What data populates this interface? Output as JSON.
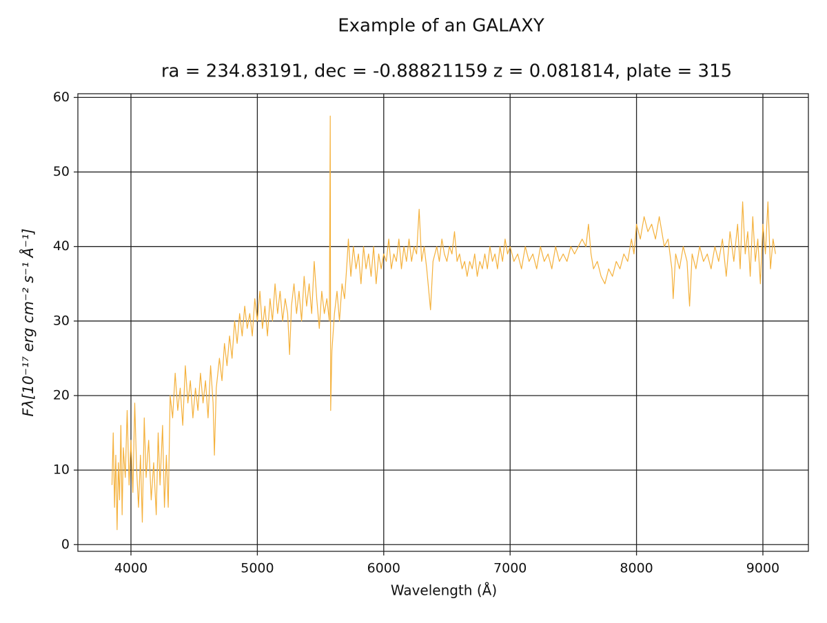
{
  "chart_data": {
    "type": "line",
    "title": "Example of an GALAXY",
    "subtitle": "ra = 234.83191, dec = -0.88821159 z = 0.081814, plate = 315",
    "xlabel": "Wavelength (Å)",
    "ylabel": "Fλ[10⁻¹⁷ erg cm⁻² s⁻¹ Å⁻¹]",
    "x": [
      3850,
      3860,
      3870,
      3880,
      3890,
      3900,
      3910,
      3920,
      3930,
      3940,
      3955,
      3970,
      3985,
      4000,
      4015,
      4030,
      4045,
      4060,
      4075,
      4090,
      4105,
      4120,
      4140,
      4160,
      4180,
      4200,
      4215,
      4230,
      4250,
      4265,
      4280,
      4295,
      4310,
      4330,
      4350,
      4370,
      4390,
      4410,
      4430,
      4450,
      4470,
      4490,
      4510,
      4530,
      4550,
      4570,
      4590,
      4610,
      4630,
      4650,
      4660,
      4675,
      4700,
      4720,
      4740,
      4760,
      4780,
      4800,
      4820,
      4840,
      4860,
      4880,
      4900,
      4920,
      4940,
      4960,
      4980,
      5000,
      5020,
      5040,
      5060,
      5080,
      5100,
      5120,
      5140,
      5160,
      5180,
      5200,
      5220,
      5240,
      5255,
      5270,
      5290,
      5310,
      5330,
      5350,
      5370,
      5390,
      5410,
      5430,
      5450,
      5470,
      5490,
      5510,
      5530,
      5550,
      5570,
      5577,
      5580,
      5590,
      5610,
      5630,
      5650,
      5670,
      5690,
      5710,
      5720,
      5740,
      5760,
      5780,
      5800,
      5820,
      5840,
      5860,
      5880,
      5900,
      5920,
      5940,
      5960,
      5980,
      6000,
      6020,
      6040,
      6060,
      6080,
      6100,
      6120,
      6140,
      6160,
      6180,
      6200,
      6220,
      6240,
      6260,
      6280,
      6300,
      6320,
      6340,
      6370,
      6390,
      6420,
      6440,
      6460,
      6480,
      6500,
      6520,
      6540,
      6560,
      6580,
      6600,
      6620,
      6640,
      6660,
      6680,
      6700,
      6720,
      6740,
      6760,
      6780,
      6800,
      6820,
      6840,
      6860,
      6880,
      6900,
      6920,
      6940,
      6960,
      6980,
      7000,
      7030,
      7060,
      7090,
      7120,
      7150,
      7180,
      7210,
      7240,
      7270,
      7300,
      7330,
      7360,
      7390,
      7420,
      7450,
      7480,
      7510,
      7540,
      7570,
      7600,
      7620,
      7640,
      7660,
      7690,
      7720,
      7750,
      7780,
      7810,
      7840,
      7870,
      7900,
      7930,
      7960,
      7980,
      8000,
      8030,
      8060,
      8090,
      8120,
      8150,
      8180,
      8200,
      8220,
      8250,
      8280,
      8290,
      8310,
      8340,
      8370,
      8400,
      8420,
      8440,
      8470,
      8500,
      8530,
      8560,
      8590,
      8620,
      8650,
      8680,
      8710,
      8740,
      8770,
      8800,
      8820,
      8840,
      8860,
      8880,
      8900,
      8920,
      8940,
      8960,
      8980,
      9000,
      9020,
      9040,
      9060,
      9080,
      9100
    ],
    "values": [
      8,
      15,
      5,
      12,
      2,
      11,
      6,
      16,
      4,
      13,
      9,
      18,
      8,
      14,
      7,
      19,
      10,
      5,
      12,
      3,
      17,
      9,
      14,
      6,
      11,
      4,
      15,
      8,
      16,
      5,
      12,
      5,
      20,
      17,
      23,
      18,
      21,
      16,
      24,
      19,
      22,
      17,
      21,
      18,
      23,
      19,
      22,
      17,
      24,
      19,
      12,
      21,
      25,
      22,
      27,
      24,
      28,
      25,
      30,
      27,
      31,
      28,
      32,
      29,
      31,
      28,
      33,
      30,
      34,
      29,
      32,
      28,
      33,
      30,
      35,
      31,
      34,
      30,
      33,
      31,
      25.5,
      32,
      35,
      31,
      34,
      30,
      36,
      32,
      35,
      31,
      38,
      33,
      29,
      34,
      31,
      33,
      30,
      57.5,
      18,
      26,
      31,
      34,
      30,
      35,
      33,
      38,
      41,
      36,
      40,
      37,
      39,
      35,
      40,
      37,
      39,
      36,
      40,
      35,
      39,
      37,
      39,
      38,
      41,
      37,
      39,
      38,
      41,
      37,
      40,
      38,
      41,
      38,
      40,
      39,
      45,
      38,
      40,
      37,
      31.5,
      38,
      40,
      38,
      41,
      39,
      38,
      40,
      39,
      42,
      38,
      39,
      37,
      38,
      36,
      38,
      37,
      39,
      36,
      38,
      37,
      39,
      37,
      40,
      38,
      39,
      37,
      40,
      38,
      41,
      39,
      40,
      38,
      39,
      37,
      40,
      38,
      39,
      37,
      40,
      38,
      39,
      37,
      40,
      38,
      39,
      38,
      40,
      39,
      40,
      41,
      40,
      43,
      39,
      37,
      38,
      36,
      35,
      37,
      36,
      38,
      37,
      39,
      38,
      41,
      39,
      43,
      41,
      44,
      42,
      43,
      41,
      44,
      42,
      40,
      41,
      37,
      33,
      39,
      37,
      40,
      38,
      32,
      39,
      37,
      40,
      38,
      39,
      37,
      40,
      38,
      41,
      36,
      42,
      38,
      43,
      37,
      46,
      39,
      42,
      36,
      44,
      38,
      41,
      35,
      43,
      39,
      46,
      37,
      41,
      39
    ],
    "color": "#f4b03a",
    "xlim": [
      3580,
      9360
    ],
    "ylim": [
      -0.9,
      60.5
    ],
    "xticks": [
      4000,
      5000,
      6000,
      7000,
      8000,
      9000
    ],
    "yticks": [
      0,
      10,
      20,
      30,
      40,
      50,
      60
    ],
    "grid": true
  }
}
